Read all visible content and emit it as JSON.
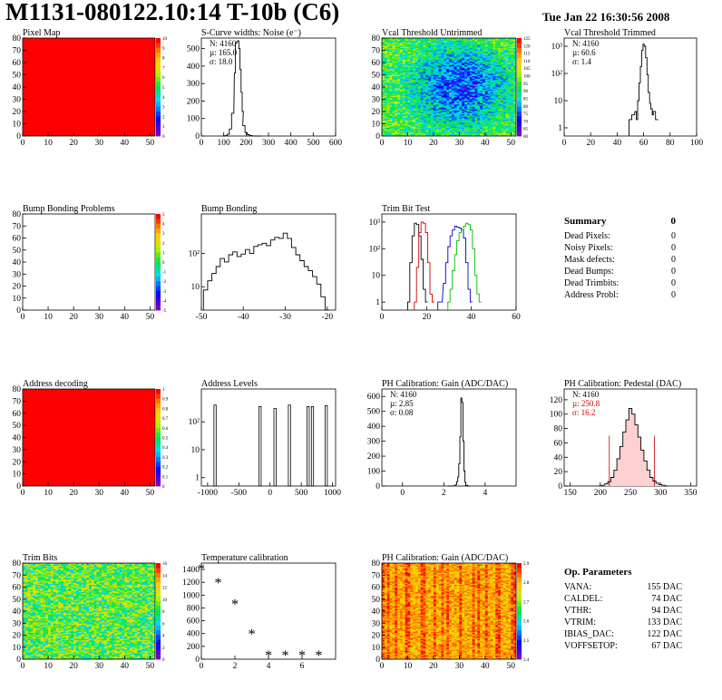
{
  "header": {
    "title": "M1131-080122.10:14 T-10b (C6)",
    "date": "Tue Jan 22 16:30:56 2008"
  },
  "colors": {
    "hist_line": "#000000",
    "red_curve": "#cc0000",
    "blue_curve": "#0000cc",
    "green_curve": "#00bb00",
    "map_red": "#ff0000",
    "stat_red": "#cc0000"
  },
  "chart_data": [
    {
      "id": "pixel_map",
      "type": "heatmap",
      "title": "Pixel Map",
      "xlim": [
        0,
        52
      ],
      "ylim": [
        0,
        80
      ],
      "xticks": [
        "0",
        "10",
        "20",
        "30",
        "40",
        "50"
      ],
      "yticks": [
        "0",
        "10",
        "20",
        "30",
        "40",
        "50",
        "60",
        "70",
        "80"
      ],
      "fill": "uniform",
      "fill_color": "#ff0000",
      "palette_labels": [
        "10",
        "9",
        "8",
        "7",
        "6",
        "5",
        "4",
        "3",
        "2",
        "1",
        "0"
      ]
    },
    {
      "id": "scurve_noise",
      "type": "line",
      "title": "S-Curve widths: Noise (e⁻)",
      "xlim": [
        0,
        600
      ],
      "ylim": [
        0,
        560
      ],
      "xticks": [
        "0",
        "100",
        "200",
        "300",
        "400",
        "500",
        "600"
      ],
      "yticks": [
        "0",
        "100",
        "200",
        "300",
        "400",
        "500"
      ],
      "stats": [
        "N: 4160",
        "µ: 165.0",
        "σ: 18.0"
      ],
      "x": [
        100,
        110,
        120,
        130,
        140,
        150,
        155,
        160,
        165,
        170,
        175,
        180,
        185,
        190,
        200,
        210,
        220,
        230,
        240,
        260
      ],
      "y": [
        0,
        2,
        10,
        40,
        130,
        360,
        530,
        540,
        545,
        500,
        380,
        250,
        140,
        60,
        20,
        8,
        3,
        1,
        0,
        0
      ]
    },
    {
      "id": "vcal_untrimmed",
      "type": "heatmap",
      "title": "Vcal Threshold Untrimmed",
      "xlim": [
        0,
        52
      ],
      "ylim": [
        0,
        80
      ],
      "xticks": [
        "0",
        "10",
        "20",
        "30",
        "40",
        "50"
      ],
      "yticks": [
        "0",
        "10",
        "20",
        "30",
        "40",
        "50",
        "60",
        "70",
        "80"
      ],
      "fill": "noise-centered",
      "palette_labels": [
        "125",
        "120",
        "115",
        "110",
        "105",
        "100",
        "95",
        "90",
        "85",
        "80",
        "75",
        "70",
        "65",
        "60"
      ]
    },
    {
      "id": "vcal_trimmed",
      "type": "line",
      "title": "Vcal Threshold Trimmed",
      "log_y": true,
      "xlim": [
        0,
        100
      ],
      "ylim": [
        0.5,
        2000
      ],
      "xticks": [
        "0",
        "20",
        "40",
        "60",
        "80",
        "100"
      ],
      "yticks": [
        "1",
        "10",
        "10²",
        "10³"
      ],
      "stats": [
        "N: 4160",
        "µ: 60.6",
        "σ: 1.4"
      ],
      "x": [
        50,
        52,
        54,
        55,
        56,
        57,
        58,
        59,
        60,
        61,
        62,
        63,
        64,
        65,
        66,
        67,
        68,
        70
      ],
      "y": [
        2,
        3,
        4,
        2,
        10,
        45,
        180,
        700,
        1200,
        1000,
        380,
        90,
        20,
        8,
        5,
        3,
        4,
        2
      ]
    },
    {
      "id": "bump_problems",
      "type": "heatmap",
      "title": "Bump Bonding Problems",
      "xlim": [
        0,
        52
      ],
      "ylim": [
        0,
        80
      ],
      "xticks": [
        "0",
        "10",
        "20",
        "30",
        "40",
        "50"
      ],
      "yticks": [
        "0",
        "10",
        "20",
        "30",
        "40",
        "50",
        "60",
        "70",
        "80"
      ],
      "fill": "empty",
      "palette_labels": [
        "5",
        "4",
        "3",
        "2",
        "1",
        "0",
        "-1",
        "-2",
        "-3",
        "-4",
        "-5"
      ]
    },
    {
      "id": "bump_bonding",
      "type": "line",
      "title": "Bump Bonding",
      "log_y": true,
      "xlim": [
        -50,
        -18
      ],
      "ylim": [
        2,
        1500
      ],
      "xticks": [
        "-50",
        "-40",
        "-30",
        "-20"
      ],
      "yticks": [
        "10",
        "10²"
      ],
      "x": [
        -49,
        -48,
        -47,
        -46,
        -45,
        -44,
        -43,
        -42,
        -41,
        -40,
        -39,
        -38,
        -37,
        -36,
        -35,
        -34,
        -33,
        -32,
        -31,
        -30,
        -29,
        -28,
        -27,
        -26,
        -25,
        -24,
        -23,
        -22,
        -21,
        -20
      ],
      "y": [
        8,
        15,
        25,
        40,
        70,
        55,
        90,
        110,
        80,
        95,
        130,
        100,
        160,
        180,
        200,
        170,
        250,
        300,
        280,
        400,
        280,
        150,
        90,
        60,
        40,
        30,
        20,
        12,
        5,
        2
      ]
    },
    {
      "id": "trim_bit_test",
      "type": "line",
      "title": "Trim Bit Test",
      "log_y": true,
      "xlim": [
        0,
        60
      ],
      "ylim": [
        0.5,
        2000
      ],
      "xticks": [
        "0",
        "20",
        "40",
        "60"
      ],
      "yticks": [
        "1",
        "10",
        "10²",
        "10³"
      ],
      "series": [
        {
          "color": "#000000",
          "x": [
            12,
            13,
            14,
            15,
            16,
            17,
            18,
            19,
            20
          ],
          "y": [
            1,
            30,
            300,
            900,
            800,
            300,
            40,
            3,
            1
          ]
        },
        {
          "color": "#cc0000",
          "x": [
            15,
            16,
            17,
            18,
            19,
            20,
            21,
            22,
            23
          ],
          "y": [
            1,
            20,
            400,
            1000,
            900,
            400,
            30,
            2,
            1
          ]
        },
        {
          "color": "#0000cc",
          "x": [
            26,
            28,
            29,
            30,
            31,
            32,
            33,
            34,
            35,
            36,
            37,
            38,
            39,
            40
          ],
          "y": [
            1,
            5,
            30,
            120,
            300,
            500,
            700,
            650,
            600,
            500,
            250,
            30,
            3,
            1
          ]
        },
        {
          "color": "#00bb00",
          "x": [
            30,
            31,
            32,
            33,
            34,
            35,
            36,
            37,
            38,
            39,
            40,
            41,
            42,
            43,
            44
          ],
          "y": [
            1,
            3,
            15,
            60,
            200,
            400,
            500,
            700,
            900,
            800,
            500,
            100,
            10,
            2,
            1
          ]
        }
      ]
    },
    {
      "id": "address_decoding",
      "type": "heatmap",
      "title": "Address decoding",
      "xlim": [
        0,
        52
      ],
      "ylim": [
        0,
        80
      ],
      "xticks": [
        "0",
        "10",
        "20",
        "30",
        "40",
        "50"
      ],
      "yticks": [
        "0",
        "10",
        "20",
        "30",
        "40",
        "50",
        "60",
        "70",
        "80"
      ],
      "fill": "uniform",
      "fill_color": "#ff0000",
      "palette_labels": [
        "1",
        "0.9",
        "0.8",
        "0.7",
        "0.6",
        "0.5",
        "0.4",
        "0.3",
        "0.2",
        "0.1",
        "0"
      ]
    },
    {
      "id": "address_levels",
      "type": "bar",
      "title": "Address Levels",
      "log_y": true,
      "xlim": [
        -1100,
        1050
      ],
      "ylim": [
        0.5,
        1500
      ],
      "xticks": [
        "-1000",
        "-500",
        "0",
        "500",
        "1000"
      ],
      "yticks": [
        "1",
        "10",
        "10²"
      ],
      "x": [
        -880,
        -160,
        80,
        310,
        610,
        680,
        900
      ],
      "y": [
        400,
        350,
        300,
        400,
        350,
        350,
        380
      ]
    },
    {
      "id": "ph_gain",
      "type": "line",
      "title": "PH Calibration: Gain (ADC/DAC)",
      "xlim": [
        -1,
        5.5
      ],
      "ylim": [
        0,
        650
      ],
      "xticks": [
        "0",
        "2",
        "4"
      ],
      "yticks": [
        "0",
        "100",
        "200",
        "300",
        "400",
        "500",
        "600"
      ],
      "stats": [
        "N: 4160",
        "µ: 2.85",
        "σ: 0.08"
      ],
      "x": [
        2.3,
        2.5,
        2.6,
        2.65,
        2.7,
        2.75,
        2.8,
        2.85,
        2.9,
        2.95,
        3.0,
        3.05,
        3.1,
        3.2
      ],
      "y": [
        0,
        2,
        10,
        30,
        60,
        150,
        330,
        590,
        560,
        300,
        100,
        25,
        5,
        0
      ]
    },
    {
      "id": "ph_pedestal",
      "type": "line",
      "title": "PH Calibration: Pedestal (DAC)",
      "xlim": [
        140,
        360
      ],
      "ylim": [
        0,
        135
      ],
      "xticks": [
        "150",
        "200",
        "250",
        "300",
        "350"
      ],
      "yticks": [
        "0",
        "20",
        "40",
        "60",
        "80",
        "100",
        "120"
      ],
      "stats": [
        "N: 4160",
        "µ: 250.8",
        "σ: 16.2"
      ],
      "cut_lines": [
        215,
        290
      ],
      "x": [
        200,
        205,
        210,
        215,
        220,
        225,
        230,
        235,
        240,
        245,
        250,
        255,
        260,
        265,
        270,
        275,
        280,
        285,
        290,
        295,
        300,
        305,
        310
      ],
      "y": [
        0,
        1,
        3,
        6,
        12,
        22,
        38,
        55,
        75,
        92,
        108,
        100,
        85,
        68,
        50,
        35,
        22,
        12,
        7,
        4,
        2,
        1,
        0
      ]
    },
    {
      "id": "trim_bits",
      "type": "heatmap",
      "title": "Trim Bits",
      "xlim": [
        0,
        52
      ],
      "ylim": [
        0,
        80
      ],
      "xticks": [
        "0",
        "10",
        "20",
        "30",
        "40",
        "50"
      ],
      "yticks": [
        "0",
        "10",
        "20",
        "30",
        "40",
        "50",
        "60",
        "70",
        "80"
      ],
      "fill": "noise-uniform",
      "palette_labels": [
        "16",
        "14",
        "12",
        "10",
        "8",
        "6",
        "4",
        "2",
        "0"
      ]
    },
    {
      "id": "temperature_calibration",
      "type": "scatter",
      "title": "Temperature calibration",
      "xlim": [
        0,
        8
      ],
      "ylim": [
        0,
        1500
      ],
      "xticks": [
        "0",
        "2",
        "4",
        "6"
      ],
      "yticks": [
        "0",
        "200",
        "400",
        "600",
        "800",
        "1000",
        "1200",
        "1400"
      ],
      "x": [
        0,
        1,
        2,
        3,
        4,
        5,
        6,
        7
      ],
      "y": [
        1420,
        1200,
        870,
        400,
        70,
        70,
        70,
        70
      ]
    },
    {
      "id": "ph_gain_map",
      "type": "heatmap",
      "title": "PH Calibration: Gain (ADC/DAC)",
      "xlim": [
        0,
        52
      ],
      "ylim": [
        0,
        80
      ],
      "xticks": [
        "0",
        "10",
        "20",
        "30",
        "40",
        "50"
      ],
      "yticks": [
        "0",
        "10",
        "20",
        "30",
        "40",
        "50",
        "60",
        "70",
        "80"
      ],
      "fill": "noise-warm",
      "palette_labels": [
        "2.9",
        "2.8",
        "2.7",
        "2.6",
        "2.5",
        "2.4"
      ]
    }
  ],
  "summary": {
    "title": "Summary",
    "total": "0",
    "rows": [
      {
        "label": "Dead Pixels:",
        "value": "0"
      },
      {
        "label": "Noisy Pixels:",
        "value": "0"
      },
      {
        "label": "Mask defects:",
        "value": "0"
      },
      {
        "label": "Dead Bumps:",
        "value": "0"
      },
      {
        "label": "Dead Trimbits:",
        "value": "0"
      },
      {
        "label": "Address Probl:",
        "value": "0"
      }
    ]
  },
  "op_parameters": {
    "title": "Op. Parameters",
    "rows": [
      {
        "label": "VANA:",
        "value": "155 DAC"
      },
      {
        "label": "CALDEL:",
        "value": "74 DAC"
      },
      {
        "label": "VTHR:",
        "value": "94 DAC"
      },
      {
        "label": "VTRIM:",
        "value": "133 DAC"
      },
      {
        "label": "IBIAS_DAC:",
        "value": "122 DAC"
      },
      {
        "label": "VOFFSETOP:",
        "value": "67 DAC"
      }
    ]
  }
}
